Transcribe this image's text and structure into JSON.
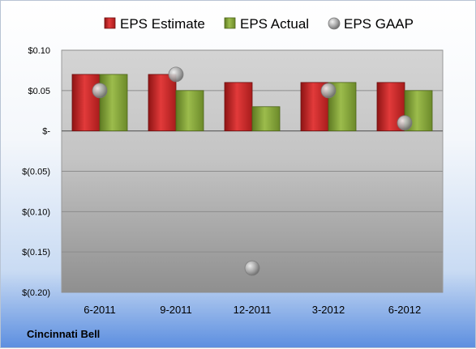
{
  "chart_data": {
    "type": "bar",
    "categories": [
      "6-2011",
      "9-2011",
      "12-2011",
      "3-2012",
      "6-2012"
    ],
    "series": [
      {
        "name": "EPS Estimate",
        "kind": "bar",
        "color": "#d42a2a",
        "values": [
          0.07,
          0.07,
          0.06,
          0.06,
          0.06
        ]
      },
      {
        "name": "EPS Actual",
        "kind": "bar",
        "color": "#8cab3c",
        "values": [
          0.07,
          0.05,
          0.03,
          0.06,
          0.05
        ]
      },
      {
        "name": "EPS GAAP",
        "kind": "marker",
        "color": "#a0a0a0",
        "values": [
          0.05,
          0.07,
          -0.17,
          0.05,
          0.01
        ]
      }
    ],
    "yticks": [
      0.1,
      0.05,
      0,
      -0.05,
      -0.1,
      -0.15,
      -0.2
    ],
    "ytick_labels": [
      "$0.10",
      "$0.05",
      "$-",
      "$(0.05)",
      "$(0.10)",
      "$(0.15)",
      "$(0.20)"
    ],
    "ylim": [
      -0.2,
      0.1
    ],
    "grid": true,
    "legend_position": "top",
    "footer": "Cincinnati Bell"
  }
}
